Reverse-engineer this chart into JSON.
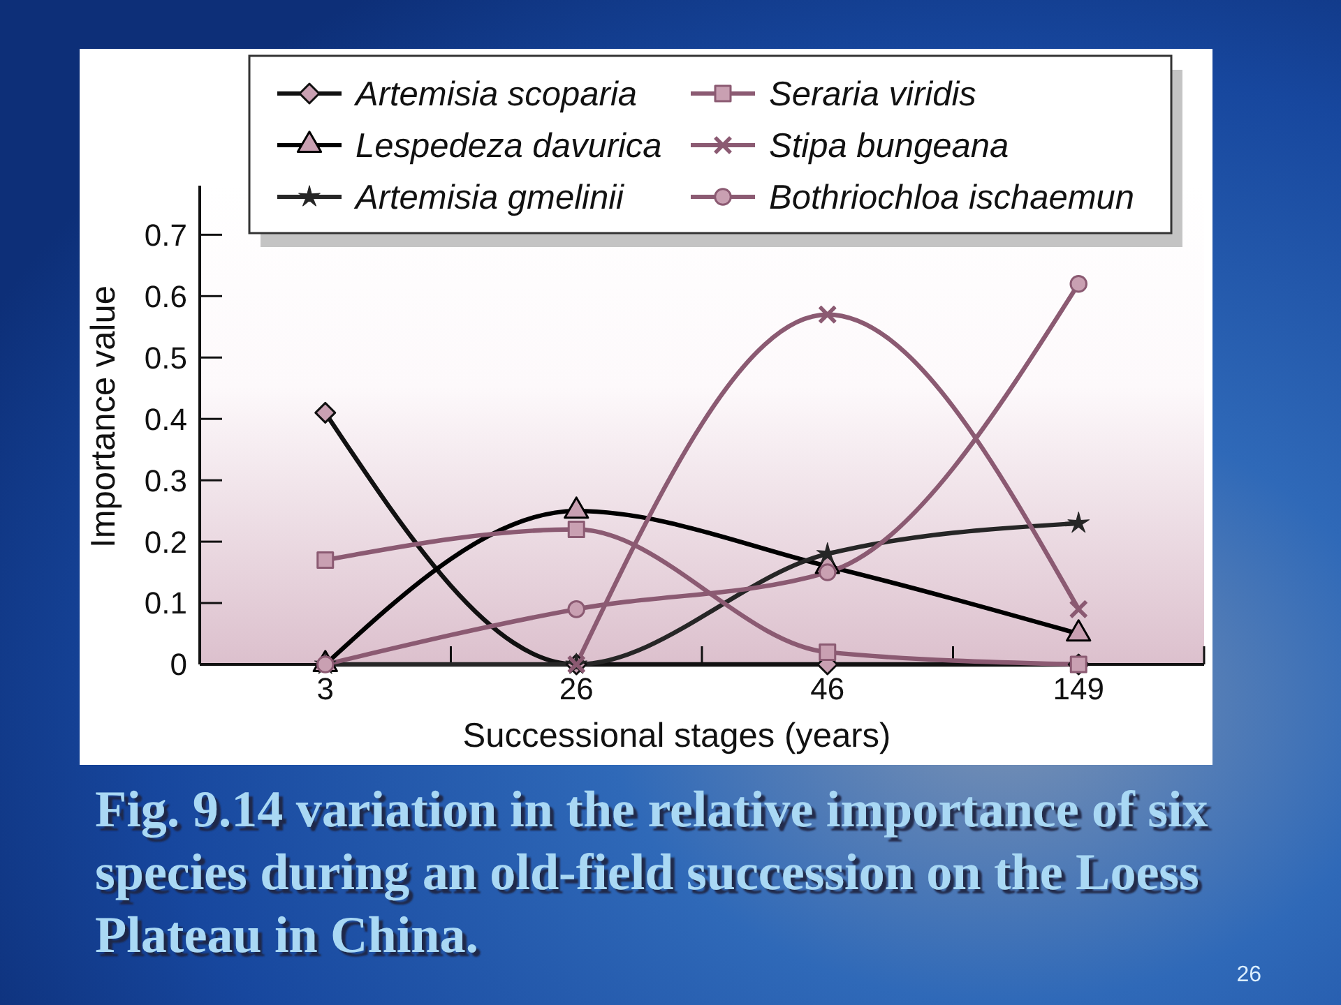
{
  "chart_data": {
    "type": "line",
    "categories": [
      "3",
      "26",
      "46",
      "149"
    ],
    "xlabel": "Successional stages (years)",
    "ylabel": "Importance value",
    "ylim": [
      0,
      0.78
    ],
    "yticks": [
      0,
      0.1,
      0.2,
      0.3,
      0.4,
      0.5,
      0.6,
      0.7
    ],
    "legend": "top",
    "line_style": "solid",
    "annotations": [
      "Fig. 9.14 variation in the relative importance of six species during an old-field succession on the Loess Plateau in China.",
      "26"
    ],
    "series": [
      {
        "name": "Artemisia scoparia",
        "color": "#111111",
        "marker": "diamond",
        "values": [
          0.41,
          0,
          0,
          0
        ]
      },
      {
        "name": "Lespedeza davurica",
        "color": "#000000",
        "marker": "triangle",
        "values": [
          0,
          0.25,
          0.16,
          0.05
        ]
      },
      {
        "name": "Artemisia gmelinii",
        "color": "#262626",
        "marker": "star",
        "values": [
          0,
          0,
          0.18,
          0.23
        ]
      },
      {
        "name": "Seraria viridis",
        "color": "#8b5a72",
        "marker": "square",
        "values": [
          0.17,
          0.22,
          0.02,
          0
        ]
      },
      {
        "name": "Stipa bungeana",
        "color": "#8b5a72",
        "marker": "cross",
        "values": [
          null,
          0,
          0.57,
          0.09
        ]
      },
      {
        "name": "Bothriochloa ischaemun",
        "color": "#8b5a72",
        "marker": "circle",
        "values": [
          0,
          0.09,
          0.15,
          0.62
        ]
      }
    ]
  }
}
